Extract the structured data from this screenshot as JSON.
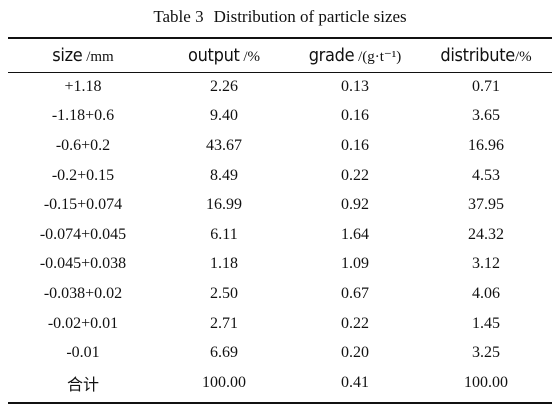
{
  "caption": {
    "label": "Table  3",
    "title": "Distribution of particle sizes"
  },
  "columns": [
    {
      "name": "size",
      "unit": " /mm"
    },
    {
      "name": "output",
      "unit": " /%"
    },
    {
      "name": "grade",
      "unit": " /(g·t⁻¹)"
    },
    {
      "name": "distribute",
      "unit": "/%"
    }
  ],
  "rows": [
    [
      "+1.18",
      "2.26",
      "0.13",
      "0.71"
    ],
    [
      "-1.18+0.6",
      "9.40",
      "0.16",
      "3.65"
    ],
    [
      "-0.6+0.2",
      "43.67",
      "0.16",
      "16.96"
    ],
    [
      "-0.2+0.15",
      "8.49",
      "0.22",
      "4.53"
    ],
    [
      "-0.15+0.074",
      "16.99",
      "0.92",
      "37.95"
    ],
    [
      "-0.074+0.045",
      "6.11",
      "1.64",
      "24.32"
    ],
    [
      "-0.045+0.038",
      "1.18",
      "1.09",
      "3.12"
    ],
    [
      "-0.038+0.02",
      "2.50",
      "0.67",
      "4.06"
    ],
    [
      "-0.02+0.01",
      "2.71",
      "0.22",
      "1.45"
    ],
    [
      "-0.01",
      "6.69",
      "0.20",
      "3.25"
    ],
    [
      "合计",
      "100.00",
      "0.41",
      "100.00"
    ]
  ]
}
